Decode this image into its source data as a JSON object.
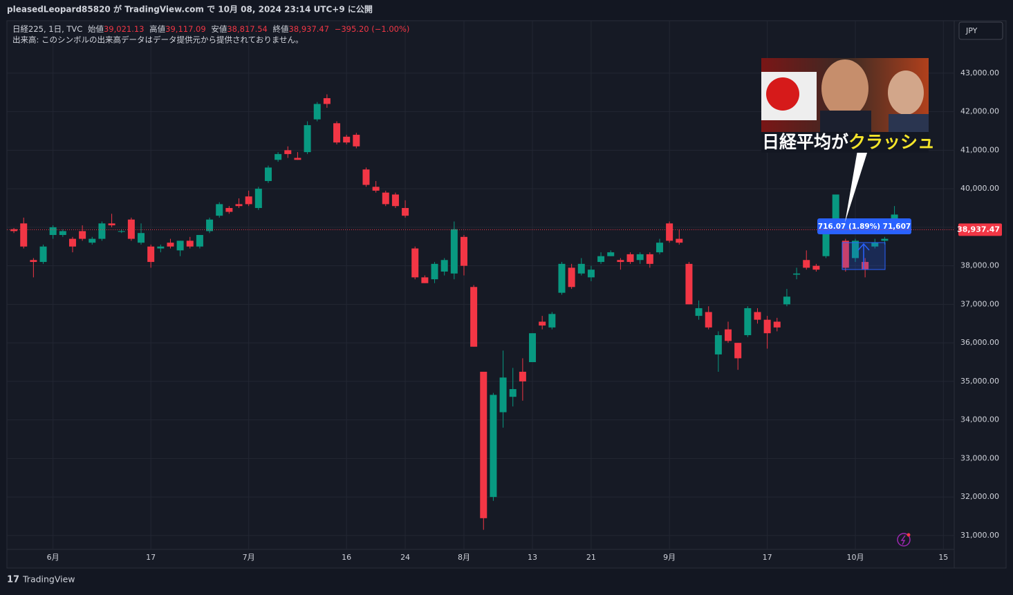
{
  "header": "pleasedLeopard85820 が TradingView.com で 10月 08, 2024 23:14 UTC+9 に公開",
  "legend": {
    "symbol": "日経225, 1日, TVC",
    "open_label": "始値",
    "open": "39,021.13",
    "high_label": "高値",
    "high": "39,117.09",
    "low_label": "安値",
    "low": "38,817.54",
    "close_label": "終値",
    "close": "38,937.47",
    "change": "−395.20 (−1.00%)",
    "volume": "出来高: このシンボルの出来高データはデータ提供元から提供されておりません。"
  },
  "currency": "JPY",
  "measure_label": "716.07 (1.89%) 71,607",
  "thumbnail": {
    "caption_white": "日経平均が",
    "caption_yellow": "クラッシュ"
  },
  "brand": "TradingView",
  "chart_data": {
    "type": "candlestick",
    "up_color": "#089981",
    "down_color": "#f23645",
    "grid": true,
    "ylim": [
      30640,
      44360
    ],
    "yticks": [
      {
        "value": 31000,
        "label": "31,000.00"
      },
      {
        "value": 32000,
        "label": "32,000.00"
      },
      {
        "value": 33000,
        "label": "33,000.00"
      },
      {
        "value": 34000,
        "label": "34,000.00"
      },
      {
        "value": 35000,
        "label": "35,000.00"
      },
      {
        "value": 36000,
        "label": "36,000.00"
      },
      {
        "value": 37000,
        "label": "37,000.00"
      },
      {
        "value": 38000,
        "label": "38,000.00"
      },
      {
        "value": 39000,
        "label": "39,000.00"
      },
      {
        "value": 40000,
        "label": "40,000.00"
      },
      {
        "value": 41000,
        "label": "41,000.00"
      },
      {
        "value": 42000,
        "label": "42,000.00"
      },
      {
        "value": 43000,
        "label": "43,000.00"
      }
    ],
    "last_price": {
      "value": 38937.47,
      "label": "38,937.47"
    },
    "categories": [
      null,
      null,
      null,
      null,
      "6月",
      null,
      null,
      null,
      null,
      null,
      null,
      null,
      null,
      null,
      "17",
      null,
      null,
      null,
      null,
      null,
      null,
      null,
      null,
      null,
      "7月",
      null,
      null,
      null,
      null,
      null,
      null,
      null,
      null,
      null,
      "16",
      null,
      null,
      null,
      null,
      null,
      "24",
      null,
      null,
      null,
      null,
      null,
      "8月",
      null,
      null,
      null,
      null,
      null,
      null,
      "13",
      null,
      null,
      null,
      null,
      null,
      "21",
      null,
      null,
      null,
      null,
      null,
      null,
      null,
      "9月",
      null,
      null,
      null,
      null,
      null,
      null,
      null,
      null,
      null,
      "17",
      null,
      null,
      null,
      null,
      null,
      null,
      null,
      null,
      "10月",
      null,
      null,
      null,
      null,
      null,
      null,
      null,
      null,
      "15"
    ],
    "open": [
      38950,
      39100,
      38150,
      38100,
      38800,
      38800,
      38700,
      38900,
      38600,
      38700,
      39100,
      38880,
      39200,
      38600,
      38500,
      38450,
      38600,
      38400,
      38650,
      38500,
      38900,
      39300,
      39500,
      39600,
      39800,
      39500,
      40200,
      40750,
      41000,
      40800,
      40950,
      41800,
      42350,
      41700,
      41350,
      41400,
      40500,
      40050,
      39900,
      39850,
      39500,
      38450,
      37700,
      37650,
      37850,
      37800,
      38750,
      37450,
      35250,
      32000,
      34200,
      34600,
      35250,
      35500,
      36550,
      36400,
      37300,
      37950,
      37800,
      37700,
      38100,
      38250,
      38150,
      38300,
      38150,
      38300,
      38350,
      39100,
      38700,
      38050,
      36700,
      36800,
      35700,
      36350,
      36000,
      36200,
      36800,
      36600,
      36550,
      37000,
      37770,
      38150,
      38000,
      38250,
      38950,
      38650,
      38200,
      38100,
      38500,
      38650,
      39200,
      39021.13,
      null,
      null,
      null,
      null
    ],
    "high": [
      38980,
      39250,
      38200,
      38550,
      39050,
      38950,
      38750,
      39050,
      38750,
      39150,
      39350,
      38950,
      39250,
      39100,
      38550,
      38550,
      38700,
      38650,
      38750,
      38800,
      39250,
      39650,
      39550,
      39750,
      39950,
      40050,
      40600,
      40950,
      41100,
      40950,
      41750,
      42250,
      42450,
      41750,
      41400,
      41450,
      40550,
      40200,
      39950,
      39900,
      39700,
      38500,
      37750,
      38100,
      38200,
      39150,
      38800,
      37500,
      35250,
      34700,
      35800,
      35350,
      35600,
      36250,
      36700,
      36800,
      38100,
      38050,
      38200,
      38000,
      38350,
      38400,
      38200,
      38350,
      38350,
      38350,
      38700,
      39150,
      38950,
      38100,
      37100,
      36950,
      36300,
      36550,
      36000,
      36950,
      36900,
      36700,
      36650,
      37400,
      37950,
      38400,
      38050,
      39000,
      39850,
      38700,
      38700,
      38200,
      38700,
      38750,
      39550,
      39117.09,
      null,
      null,
      null,
      null
    ],
    "low": [
      38850,
      38450,
      37700,
      38050,
      38700,
      38750,
      38350,
      38650,
      38550,
      38650,
      39000,
      38850,
      38650,
      38550,
      37950,
      38350,
      38450,
      38250,
      38450,
      38450,
      38850,
      39250,
      39350,
      39500,
      39550,
      39450,
      40150,
      40700,
      40800,
      40750,
      40900,
      41750,
      42100,
      41150,
      41150,
      41050,
      40050,
      39900,
      39550,
      39500,
      39250,
      37650,
      37550,
      37550,
      37750,
      37650,
      37750,
      35900,
      31150,
      31900,
      33800,
      34350,
      34500,
      35500,
      36350,
      36350,
      37250,
      37400,
      37750,
      37600,
      38050,
      38250,
      37900,
      38050,
      38050,
      37950,
      38300,
      38600,
      38550,
      37000,
      36600,
      36350,
      35250,
      36000,
      35300,
      36150,
      36500,
      35850,
      36300,
      36950,
      37650,
      37900,
      37850,
      38200,
      38900,
      37850,
      38100,
      37700,
      38450,
      38550,
      38950,
      38817.54,
      null,
      null,
      null,
      null
    ],
    "close": [
      38900,
      38500,
      38100,
      38500,
      39000,
      38900,
      38500,
      38700,
      38700,
      39100,
      39050,
      38900,
      38700,
      38850,
      38100,
      38500,
      38500,
      38650,
      38500,
      38800,
      39200,
      39600,
      39400,
      39550,
      39600,
      40000,
      40550,
      40900,
      40900,
      40750,
      41650,
      42200,
      42200,
      41200,
      41200,
      41100,
      40100,
      39950,
      39600,
      39550,
      39300,
      37700,
      37550,
      38050,
      38150,
      38950,
      38000,
      35900,
      31450,
      34650,
      35100,
      34800,
      35000,
      36250,
      36450,
      36750,
      38050,
      37450,
      38050,
      37900,
      38250,
      38350,
      38100,
      38100,
      38300,
      38050,
      38600,
      38650,
      38600,
      37000,
      36900,
      36400,
      36200,
      36050,
      35600,
      36900,
      36600,
      36250,
      36400,
      37200,
      37800,
      37950,
      37900,
      39000,
      39850,
      37950,
      38650,
      37900,
      38600,
      38700,
      39330,
      38937.47,
      null,
      null,
      null,
      null
    ]
  }
}
